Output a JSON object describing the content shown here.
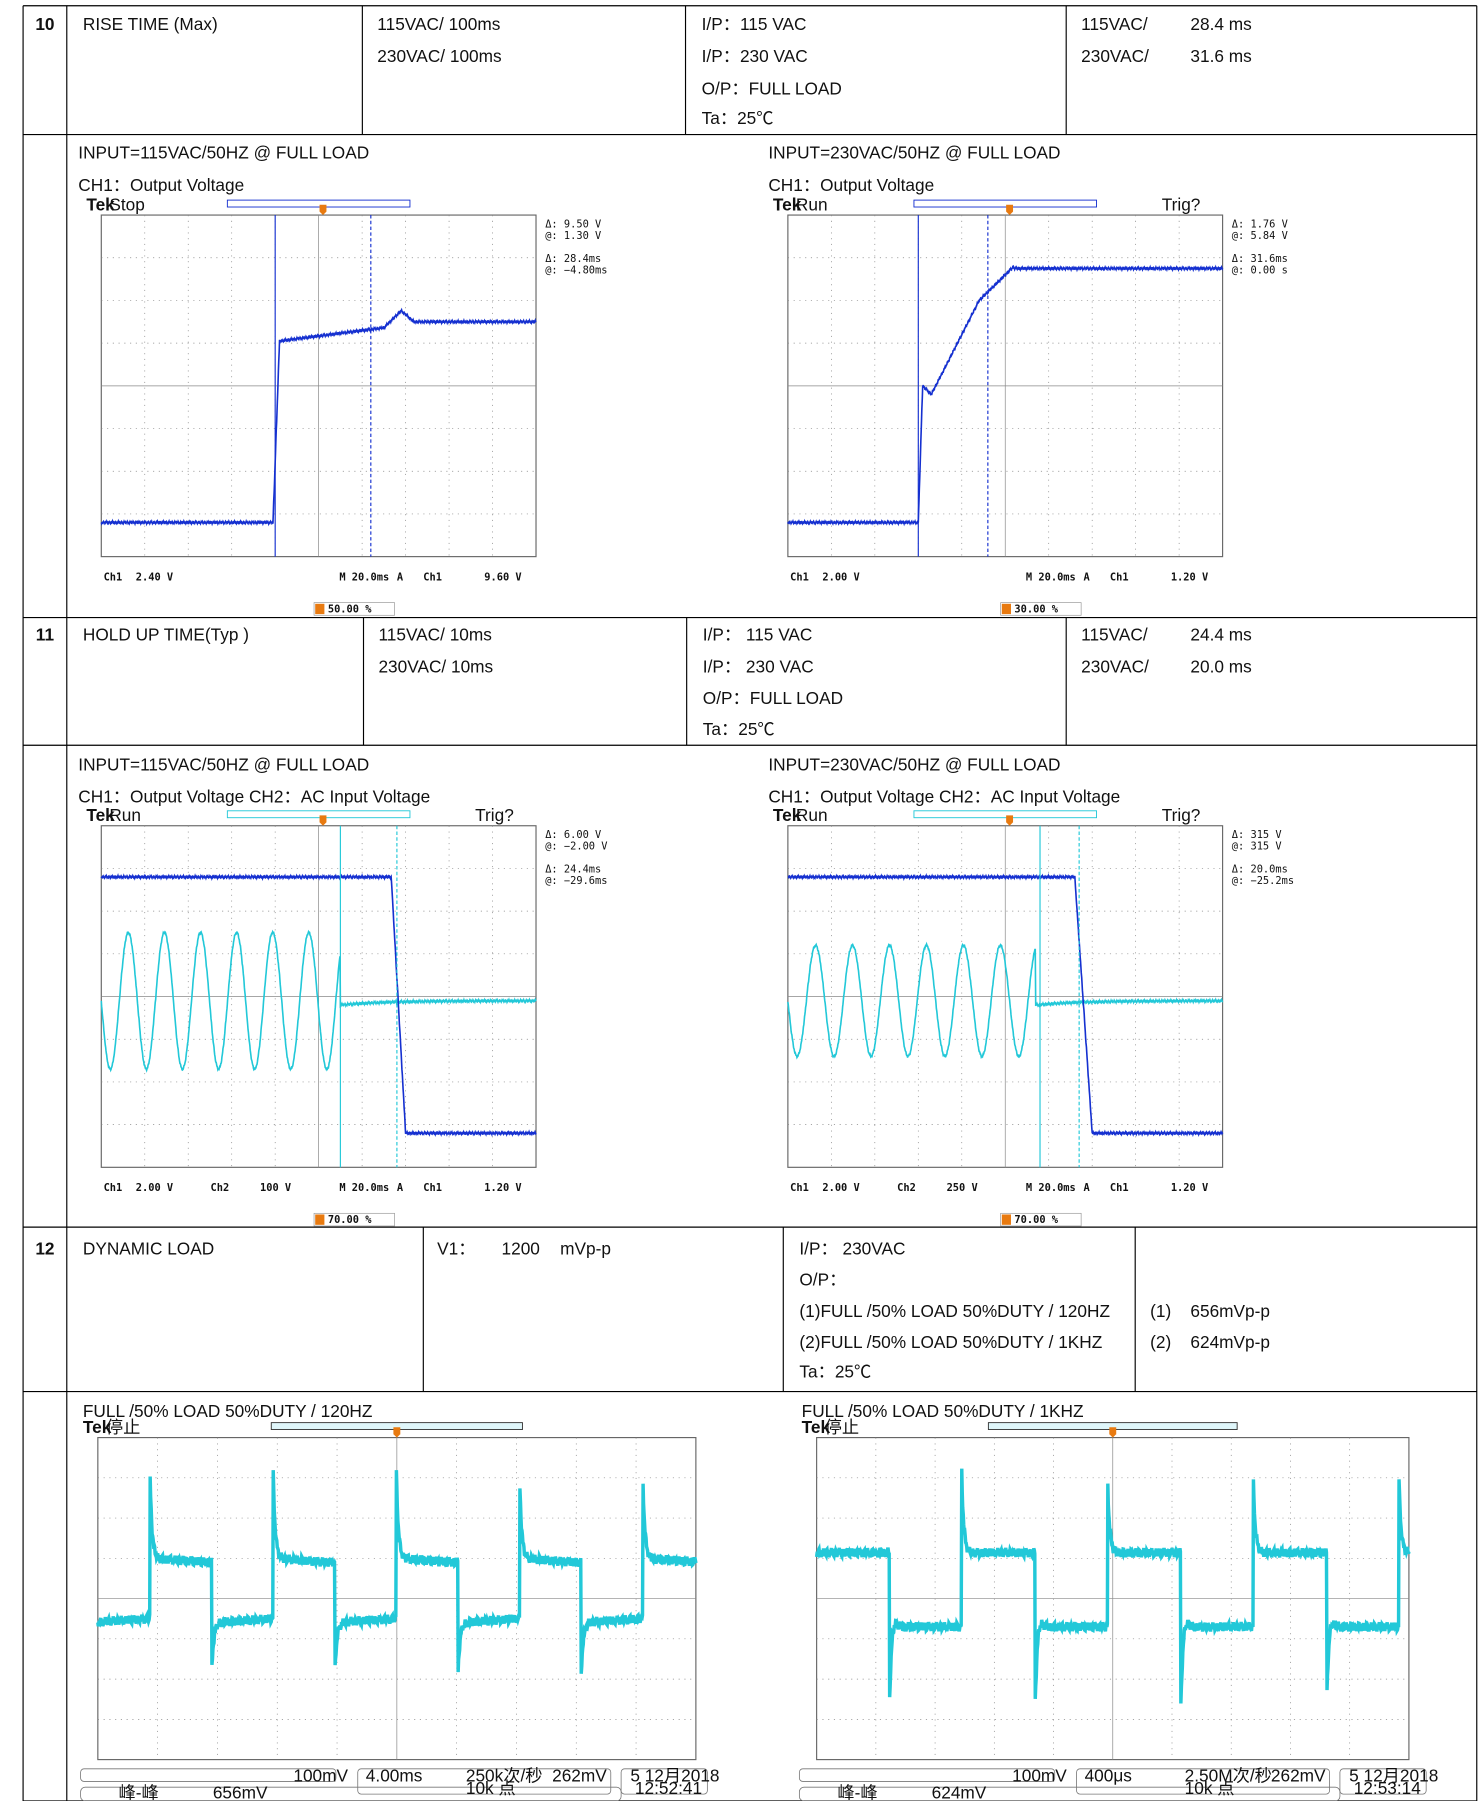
{
  "rows": [
    {
      "no": "10",
      "item": "RISE TIME (Max)",
      "spec": [
        "115VAC/ 100ms",
        "230VAC/ 100ms"
      ],
      "condition": [
        "I/P：115 VAC",
        "I/P：230 VAC",
        "O/P：FULL LOAD",
        "Ta：25℃"
      ],
      "result": [
        [
          "115VAC/",
          "28.4 ms"
        ],
        [
          "230VAC/",
          "31.6 ms"
        ]
      ],
      "scopes": [
        {
          "caption": [
            "INPUT=115VAC/50HZ @ FULL LOAD",
            "CH1：Output Voltage"
          ],
          "status": "Stop",
          "readouts": [
            "Δ:   9.50 V",
            "@:   1.30 V",
            "Δ:   28.4ms",
            "@:  −4.80ms"
          ],
          "bottom": [
            "Ch1",
            "2.40 V",
            "M 20.0ms",
            "A",
            "Ch1",
            "9.60 V"
          ],
          "trigger": "50.00 %"
        },
        {
          "caption": [
            "INPUT=230VAC/50HZ @ FULL LOAD",
            "CH1：Output Voltage"
          ],
          "status": "Run",
          "trig": "Trig?",
          "readouts": [
            "Δ:   1.76 V",
            "@:   5.84 V",
            "Δ:   31.6ms",
            "@:   0.00 s"
          ],
          "bottom": [
            "Ch1",
            "2.00 V",
            "M 20.0ms",
            "A",
            "Ch1",
            "1.20 V"
          ],
          "trigger": "30.00 %"
        }
      ]
    },
    {
      "no": "11",
      "item": "HOLD UP TIME(Typ )",
      "spec": [
        "115VAC/ 10ms",
        "230VAC/ 10ms"
      ],
      "condition": [
        "I/P：  115 VAC",
        "I/P：  230 VAC",
        "O/P：FULL LOAD",
        "Ta：25℃"
      ],
      "result": [
        [
          "115VAC/",
          "24.4 ms"
        ],
        [
          "230VAC/",
          "20.0 ms"
        ]
      ],
      "scopes": [
        {
          "caption": [
            "INPUT=115VAC/50HZ @ FULL LOAD",
            "CH1：Output Voltage    CH2：AC Input Voltage"
          ],
          "status": "Run",
          "trig": "Trig?",
          "readouts": [
            "Δ:   6.00 V",
            "@:  −2.00 V",
            "Δ:   24.4ms",
            "@:  −29.6ms"
          ],
          "bottom": [
            "Ch1",
            "2.00 V",
            "Ch2",
            "100 V",
            "M 20.0ms",
            "A",
            "Ch1",
            "1.20 V"
          ],
          "trigger": "70.00 %"
        },
        {
          "caption": [
            "INPUT=230VAC/50HZ @ FULL LOAD",
            "CH1：Output Voltage    CH2：AC Input Voltage"
          ],
          "status": "Run",
          "trig": "Trig?",
          "readouts": [
            "Δ:    315 V",
            "@:    315 V",
            "Δ:   20.0ms",
            "@:  −25.2ms"
          ],
          "bottom": [
            "Ch1",
            "2.00 V",
            "Ch2",
            "250 V",
            "M 20.0ms",
            "A",
            "Ch1",
            "1.20 V"
          ],
          "trigger": "70.00 %"
        }
      ]
    },
    {
      "no": "12",
      "item": "DYNAMIC LOAD",
      "spec": [
        "V1：",
        "1200",
        "mVp-p"
      ],
      "condition": [
        "I/P：  230VAC",
        "O/P：",
        "(1)FULL /50% LOAD 50%DUTY / 120HZ",
        "(2)FULL /50% LOAD 50%DUTY / 1KHZ",
        "Ta：25℃"
      ],
      "result": [
        [
          "(1)",
          "656mVp-p"
        ],
        [
          "(2)",
          "624mVp-p"
        ]
      ],
      "scopes": [
        {
          "caption": [
            "FULL /50% LOAD 50%DUTY / 120HZ"
          ],
          "status": "停止",
          "bottom": [
            "100mV",
            "4.00ms",
            "250k次/秒",
            "10k 点",
            "262mV",
            "5 12月2018",
            "12:52:41",
            "峰-峰",
            "656mV"
          ]
        },
        {
          "caption": [
            "FULL /50% LOAD 50%DUTY / 1KHZ"
          ],
          "status": "停止",
          "bottom": [
            "100mV",
            "400μs",
            "2.50M次/秒",
            "10k 点",
            "262mV",
            "5 12月2018",
            "12:53:14",
            "峰-峰",
            "624mV"
          ]
        }
      ]
    }
  ]
}
